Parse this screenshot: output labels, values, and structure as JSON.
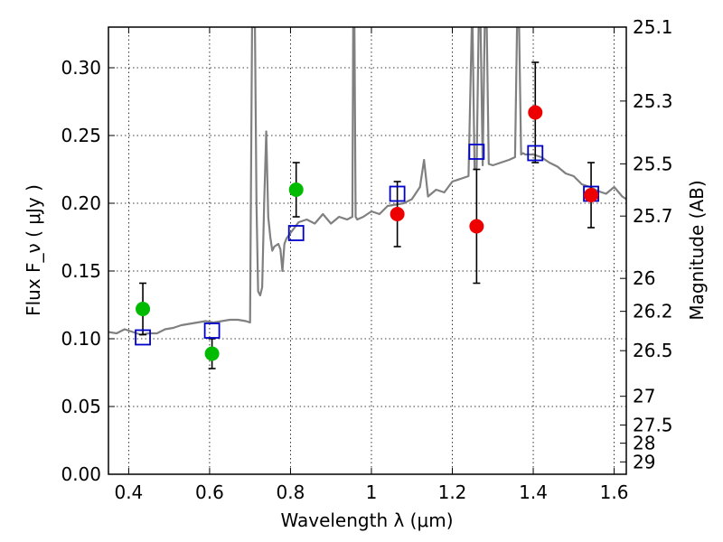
{
  "chart_data": {
    "type": "scatter",
    "xlabel": "Wavelength  λ (μm)",
    "ylabel": "Flux  F_ν  ( μJy )",
    "y2label": "Magnitude (AB)",
    "xlim": [
      0.35,
      1.63
    ],
    "ylim": [
      0.0,
      0.33
    ],
    "grid": true,
    "x_ticks": [
      0.4,
      0.6,
      0.8,
      1.0,
      1.2,
      1.4,
      1.6
    ],
    "x_tick_labels": [
      "0.4",
      "0.6",
      "0.8",
      "1",
      "1.2",
      "1.4",
      "1.6"
    ],
    "y_ticks": [
      0.0,
      0.05,
      0.1,
      0.15,
      0.2,
      0.25,
      0.3
    ],
    "y_tick_labels": [
      "0.00",
      "0.05",
      "0.10",
      "0.15",
      "0.20",
      "0.25",
      "0.30"
    ],
    "y2_ticks": [
      25.1,
      25.3,
      25.5,
      25.7,
      26,
      26.2,
      26.5,
      27,
      27.5,
      28,
      29
    ],
    "y2_tick_labels": [
      "25.1",
      "25.3",
      "25.5",
      "25.7",
      "26",
      "26.2",
      "26.5",
      "27",
      "27.5",
      "28",
      "29"
    ],
    "colors": {
      "model": "#808080",
      "green": "#00bb00",
      "red": "#ee0000",
      "square": "#0000cc",
      "errorbar": "#000000"
    },
    "model_spectrum": {
      "x": [
        0.35,
        0.37,
        0.39,
        0.41,
        0.43,
        0.45,
        0.47,
        0.49,
        0.51,
        0.53,
        0.55,
        0.57,
        0.59,
        0.61,
        0.63,
        0.65,
        0.67,
        0.69,
        0.7,
        0.705,
        0.708,
        0.712,
        0.716,
        0.72,
        0.725,
        0.73,
        0.735,
        0.74,
        0.745,
        0.75,
        0.755,
        0.76,
        0.77,
        0.775,
        0.78,
        0.785,
        0.79,
        0.8,
        0.82,
        0.84,
        0.86,
        0.88,
        0.9,
        0.92,
        0.94,
        0.953,
        0.955,
        0.958,
        0.961,
        0.965,
        0.98,
        1.0,
        1.02,
        1.04,
        1.06,
        1.08,
        1.1,
        1.12,
        1.13,
        1.14,
        1.16,
        1.18,
        1.2,
        1.22,
        1.24,
        1.248,
        1.25,
        1.255,
        1.26,
        1.265,
        1.27,
        1.275,
        1.28,
        1.285,
        1.29,
        1.3,
        1.32,
        1.34,
        1.355,
        1.36,
        1.365,
        1.37,
        1.375,
        1.38,
        1.4,
        1.42,
        1.44,
        1.46,
        1.48,
        1.5,
        1.52,
        1.54,
        1.56,
        1.58,
        1.6,
        1.62,
        1.63
      ],
      "y": [
        0.105,
        0.104,
        0.107,
        0.105,
        0.103,
        0.104,
        0.104,
        0.107,
        0.108,
        0.11,
        0.111,
        0.112,
        0.113,
        0.112,
        0.113,
        0.114,
        0.114,
        0.113,
        0.112,
        0.33,
        0.33,
        0.33,
        0.2,
        0.135,
        0.132,
        0.138,
        0.2,
        0.253,
        0.19,
        0.175,
        0.165,
        0.168,
        0.17,
        0.166,
        0.15,
        0.17,
        0.174,
        0.178,
        0.186,
        0.188,
        0.185,
        0.192,
        0.185,
        0.19,
        0.188,
        0.19,
        0.33,
        0.33,
        0.19,
        0.188,
        0.19,
        0.194,
        0.192,
        0.198,
        0.199,
        0.2,
        0.203,
        0.212,
        0.232,
        0.205,
        0.21,
        0.208,
        0.216,
        0.218,
        0.22,
        0.33,
        0.33,
        0.225,
        0.226,
        0.33,
        0.33,
        0.228,
        0.33,
        0.33,
        0.229,
        0.228,
        0.23,
        0.232,
        0.234,
        0.33,
        0.33,
        0.236,
        0.237,
        0.236,
        0.236,
        0.234,
        0.23,
        0.227,
        0.222,
        0.22,
        0.214,
        0.212,
        0.209,
        0.207,
        0.212,
        0.205,
        0.203
      ]
    },
    "green_points": [
      {
        "x": 0.435,
        "y": 0.122,
        "err": 0.019
      },
      {
        "x": 0.606,
        "y": 0.089,
        "err": 0.011
      },
      {
        "x": 0.814,
        "y": 0.21,
        "err": 0.02
      }
    ],
    "red_points": [
      {
        "x": 1.064,
        "y": 0.192,
        "err": 0.024
      },
      {
        "x": 1.26,
        "y": 0.183,
        "err": 0.042
      },
      {
        "x": 1.405,
        "y": 0.267,
        "err": 0.037
      },
      {
        "x": 1.543,
        "y": 0.206,
        "err": 0.024
      }
    ],
    "model_squares": [
      {
        "x": 0.435,
        "y": 0.101
      },
      {
        "x": 0.606,
        "y": 0.106
      },
      {
        "x": 0.814,
        "y": 0.178
      },
      {
        "x": 1.064,
        "y": 0.207
      },
      {
        "x": 1.26,
        "y": 0.238
      },
      {
        "x": 1.405,
        "y": 0.237
      },
      {
        "x": 1.543,
        "y": 0.207
      }
    ]
  }
}
